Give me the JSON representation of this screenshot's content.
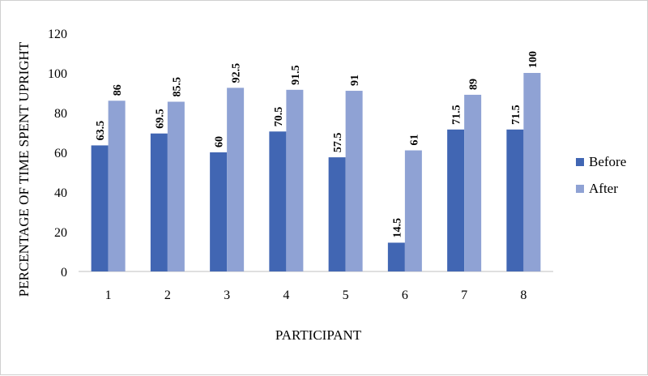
{
  "chart_data": {
    "type": "bar",
    "title": "",
    "xlabel": "PARTICIPANT",
    "ylabel": "PERCENTAGE OF TIME SPENT UPRIGHT",
    "categories": [
      "1",
      "2",
      "3",
      "4",
      "5",
      "6",
      "7",
      "8"
    ],
    "series": [
      {
        "name": "Before",
        "values": [
          63.5,
          69.5,
          60,
          70.5,
          57.5,
          14.5,
          71.5,
          71.5
        ],
        "color": "#4166b3"
      },
      {
        "name": "After",
        "values": [
          86,
          85.5,
          92.5,
          91.5,
          91,
          61,
          89,
          100
        ],
        "color": "#8fa2d4"
      }
    ],
    "ylim": [
      0,
      120
    ],
    "yticks": [
      0,
      20,
      40,
      60,
      80,
      100,
      120
    ],
    "grid": false,
    "legend_position": "right",
    "data_labels": true
  }
}
